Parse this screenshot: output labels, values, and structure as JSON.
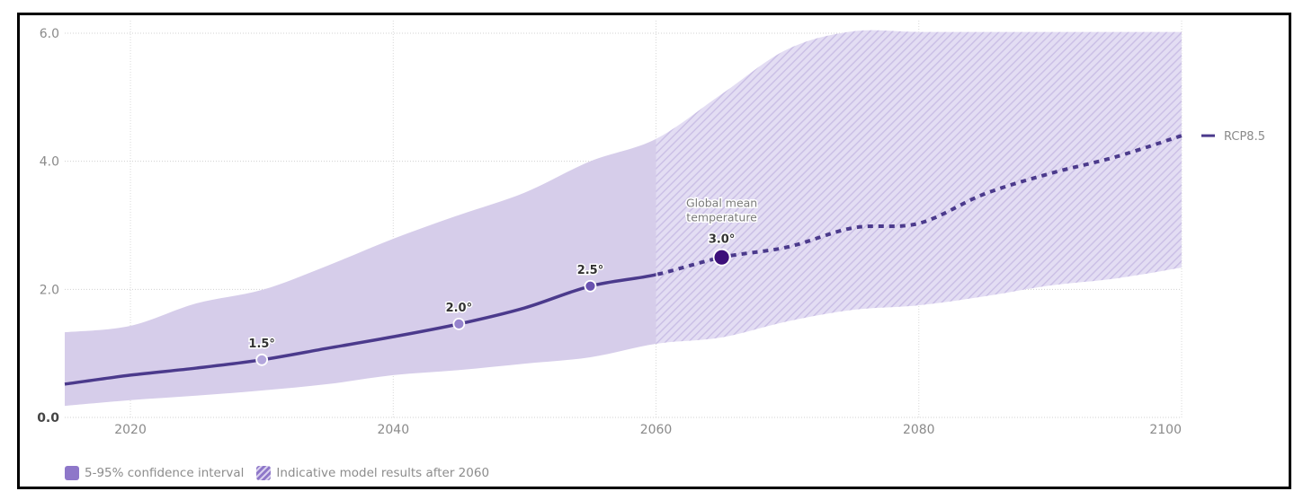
{
  "chart_data": {
    "type": "area",
    "title": "",
    "xlabel": "",
    "ylabel": "",
    "xlim": [
      2015,
      2100
    ],
    "ylim": [
      0,
      6
    ],
    "x_ticks": [
      2020,
      2040,
      2060,
      2080,
      2100
    ],
    "x_tick_labels": [
      "2020",
      "2040",
      "2060",
      "2080",
      "2100"
    ],
    "y_ticks": [
      0,
      2,
      4,
      6
    ],
    "y_tick_labels": [
      "0.0",
      "2.0",
      "4.0",
      "6.0"
    ],
    "grid": true,
    "x": [
      2015,
      2020,
      2025,
      2030,
      2035,
      2040,
      2045,
      2050,
      2055,
      2060,
      2065,
      2070,
      2075,
      2080,
      2085,
      2090,
      2095,
      2100
    ],
    "series": [
      {
        "name": "RCP8.5",
        "type": "line",
        "color": "#4b3a8c",
        "solid_until": 2060,
        "dashed_after": 2060,
        "values": [
          0.52,
          0.66,
          0.77,
          0.9,
          1.08,
          1.26,
          1.46,
          1.71,
          2.05,
          2.23,
          2.5,
          2.66,
          2.96,
          3.03,
          3.49,
          3.81,
          4.07,
          4.4
        ]
      },
      {
        "name": "5-95% confidence interval",
        "type": "band",
        "color": "#d6cdea",
        "upper": [
          1.33,
          1.43,
          1.78,
          1.99,
          2.37,
          2.79,
          3.16,
          3.51,
          4.0,
          4.35,
          5.05,
          5.75,
          6.03,
          6.02,
          6.02,
          6.02,
          6.02,
          6.02
        ],
        "lower": [
          0.18,
          0.27,
          0.34,
          0.42,
          0.52,
          0.66,
          0.74,
          0.84,
          0.94,
          1.15,
          1.25,
          1.5,
          1.68,
          1.75,
          1.89,
          2.06,
          2.17,
          2.34
        ]
      }
    ],
    "hatched_after": 2060,
    "markers": [
      {
        "x": 2030,
        "y": 0.9,
        "label": "1.5°",
        "color": "#b3a6dc"
      },
      {
        "x": 2045,
        "y": 1.46,
        "label": "2.0°",
        "color": "#9583cc"
      },
      {
        "x": 2055,
        "y": 2.05,
        "label": "2.5°",
        "color": "#6a52b0"
      },
      {
        "x": 2065,
        "y": 2.5,
        "label": "3.0°",
        "color": "#3d0f7a"
      }
    ],
    "annotations": [
      {
        "x": 2065,
        "lines": [
          "Global mean",
          "temperature"
        ]
      }
    ],
    "legend": [
      {
        "label": "5-95% confidence interval",
        "style": "solid"
      },
      {
        "label": "Indicative model results after 2060",
        "style": "hatched"
      }
    ],
    "legend_position": "bottom-left",
    "series_label_position": "right"
  }
}
